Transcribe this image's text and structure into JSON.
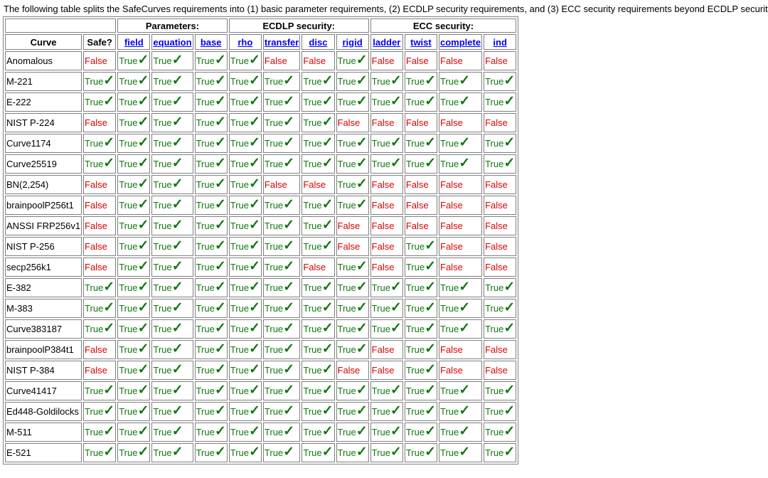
{
  "intro": "The following table splits the SafeCurves requirements into (1) basic parameter requirements, (2) ECDLP security requirements, and (3) ECC security requirements beyond ECDLP security:",
  "groups": [
    "Parameters:",
    "ECDLP security:",
    "ECC security:"
  ],
  "headers": {
    "curve": "Curve",
    "safe": "Safe?",
    "parameters": [
      "field",
      "equation",
      "base"
    ],
    "ecdlp": [
      "rho",
      "transfer",
      "disc",
      "rigid"
    ],
    "ecc": [
      "ladder",
      "twist",
      "complete",
      "ind"
    ]
  },
  "labels": {
    "true": "True",
    "false": "False",
    "check": "✓"
  },
  "colors": {
    "true": "#117711",
    "false": "#dd0000",
    "link": "#0000ee",
    "border": "#7f7f7f"
  },
  "rows": [
    {
      "curve": "Anomalous",
      "values": [
        false,
        true,
        true,
        true,
        true,
        false,
        false,
        true,
        false,
        false,
        false,
        false
      ]
    },
    {
      "curve": "M-221",
      "values": [
        true,
        true,
        true,
        true,
        true,
        true,
        true,
        true,
        true,
        true,
        true,
        true
      ]
    },
    {
      "curve": "E-222",
      "values": [
        true,
        true,
        true,
        true,
        true,
        true,
        true,
        true,
        true,
        true,
        true,
        true
      ]
    },
    {
      "curve": "NIST P-224",
      "values": [
        false,
        true,
        true,
        true,
        true,
        true,
        true,
        false,
        false,
        false,
        false,
        false
      ]
    },
    {
      "curve": "Curve1174",
      "values": [
        true,
        true,
        true,
        true,
        true,
        true,
        true,
        true,
        true,
        true,
        true,
        true
      ]
    },
    {
      "curve": "Curve25519",
      "values": [
        true,
        true,
        true,
        true,
        true,
        true,
        true,
        true,
        true,
        true,
        true,
        true
      ]
    },
    {
      "curve": "BN(2,254)",
      "values": [
        false,
        true,
        true,
        true,
        true,
        false,
        false,
        true,
        false,
        false,
        false,
        false
      ]
    },
    {
      "curve": "brainpoolP256t1",
      "values": [
        false,
        true,
        true,
        true,
        true,
        true,
        true,
        true,
        false,
        false,
        false,
        false
      ]
    },
    {
      "curve": "ANSSI FRP256v1",
      "values": [
        false,
        true,
        true,
        true,
        true,
        true,
        true,
        false,
        false,
        false,
        false,
        false
      ]
    },
    {
      "curve": "NIST P-256",
      "values": [
        false,
        true,
        true,
        true,
        true,
        true,
        true,
        false,
        false,
        true,
        false,
        false
      ]
    },
    {
      "curve": "secp256k1",
      "values": [
        false,
        true,
        true,
        true,
        true,
        true,
        false,
        true,
        false,
        true,
        false,
        false
      ]
    },
    {
      "curve": "E-382",
      "values": [
        true,
        true,
        true,
        true,
        true,
        true,
        true,
        true,
        true,
        true,
        true,
        true
      ]
    },
    {
      "curve": "M-383",
      "values": [
        true,
        true,
        true,
        true,
        true,
        true,
        true,
        true,
        true,
        true,
        true,
        true
      ]
    },
    {
      "curve": "Curve383187",
      "values": [
        true,
        true,
        true,
        true,
        true,
        true,
        true,
        true,
        true,
        true,
        true,
        true
      ]
    },
    {
      "curve": "brainpoolP384t1",
      "values": [
        false,
        true,
        true,
        true,
        true,
        true,
        true,
        true,
        false,
        true,
        false,
        false
      ]
    },
    {
      "curve": "NIST P-384",
      "values": [
        false,
        true,
        true,
        true,
        true,
        true,
        true,
        false,
        false,
        true,
        false,
        false
      ]
    },
    {
      "curve": "Curve41417",
      "values": [
        true,
        true,
        true,
        true,
        true,
        true,
        true,
        true,
        true,
        true,
        true,
        true
      ]
    },
    {
      "curve": "Ed448-Goldilocks",
      "values": [
        true,
        true,
        true,
        true,
        true,
        true,
        true,
        true,
        true,
        true,
        true,
        true
      ]
    },
    {
      "curve": "M-511",
      "values": [
        true,
        true,
        true,
        true,
        true,
        true,
        true,
        true,
        true,
        true,
        true,
        true
      ]
    },
    {
      "curve": "E-521",
      "values": [
        true,
        true,
        true,
        true,
        true,
        true,
        true,
        true,
        true,
        true,
        true,
        true
      ]
    }
  ]
}
